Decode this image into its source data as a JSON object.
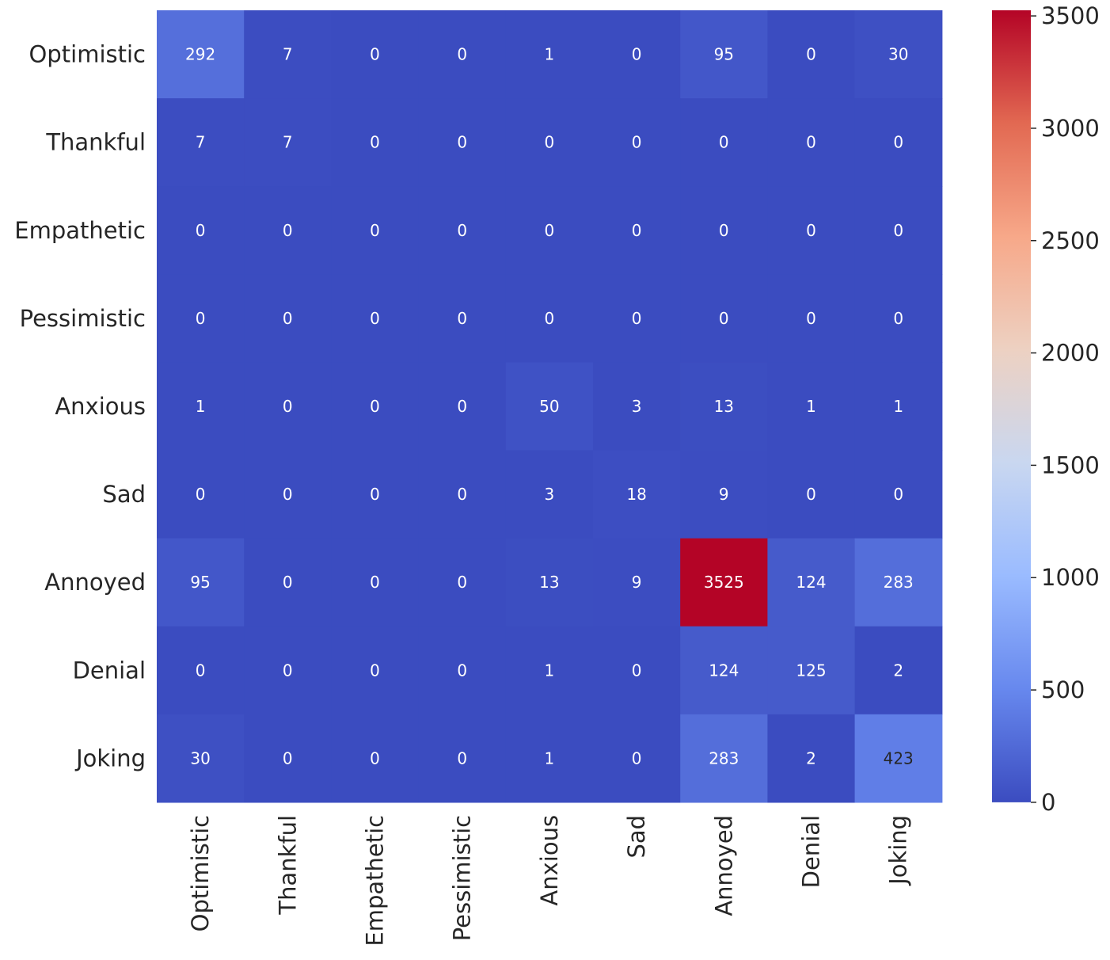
{
  "chart_data": {
    "type": "heatmap",
    "title": "",
    "xlabel": "",
    "ylabel": "",
    "row_labels": [
      "Optimistic",
      "Thankful",
      "Empathetic",
      "Pessimistic",
      "Anxious",
      "Sad",
      "Annoyed",
      "Denial",
      "Joking"
    ],
    "col_labels": [
      "Optimistic",
      "Thankful",
      "Empathetic",
      "Pessimistic",
      "Anxious",
      "Sad",
      "Annoyed",
      "Denial",
      "Joking"
    ],
    "values": [
      [
        292,
        7,
        0,
        0,
        1,
        0,
        95,
        0,
        30
      ],
      [
        7,
        7,
        0,
        0,
        0,
        0,
        0,
        0,
        0
      ],
      [
        0,
        0,
        0,
        0,
        0,
        0,
        0,
        0,
        0
      ],
      [
        0,
        0,
        0,
        0,
        0,
        0,
        0,
        0,
        0
      ],
      [
        1,
        0,
        0,
        0,
        50,
        3,
        13,
        1,
        1
      ],
      [
        0,
        0,
        0,
        0,
        3,
        18,
        9,
        0,
        0
      ],
      [
        95,
        0,
        0,
        0,
        13,
        9,
        3525,
        124,
        283
      ],
      [
        0,
        0,
        0,
        0,
        1,
        0,
        124,
        125,
        2
      ],
      [
        30,
        0,
        0,
        0,
        1,
        0,
        283,
        2,
        423
      ]
    ],
    "colormap": "coolwarm",
    "colormap_stops": [
      "#3b4cc0",
      "#6788ee",
      "#9abbff",
      "#c9d7f0",
      "#edd1c2",
      "#f7a889",
      "#e26952",
      "#b40426"
    ],
    "vmin": 0,
    "vmax": 3525,
    "colorbar_ticks": [
      0,
      500,
      1000,
      1500,
      2000,
      2500,
      3000,
      3500
    ],
    "colorbar_tick_labels": [
      "0",
      "500",
      "1000",
      "1500",
      "2000",
      "2500",
      "3000",
      "3500"
    ]
  }
}
